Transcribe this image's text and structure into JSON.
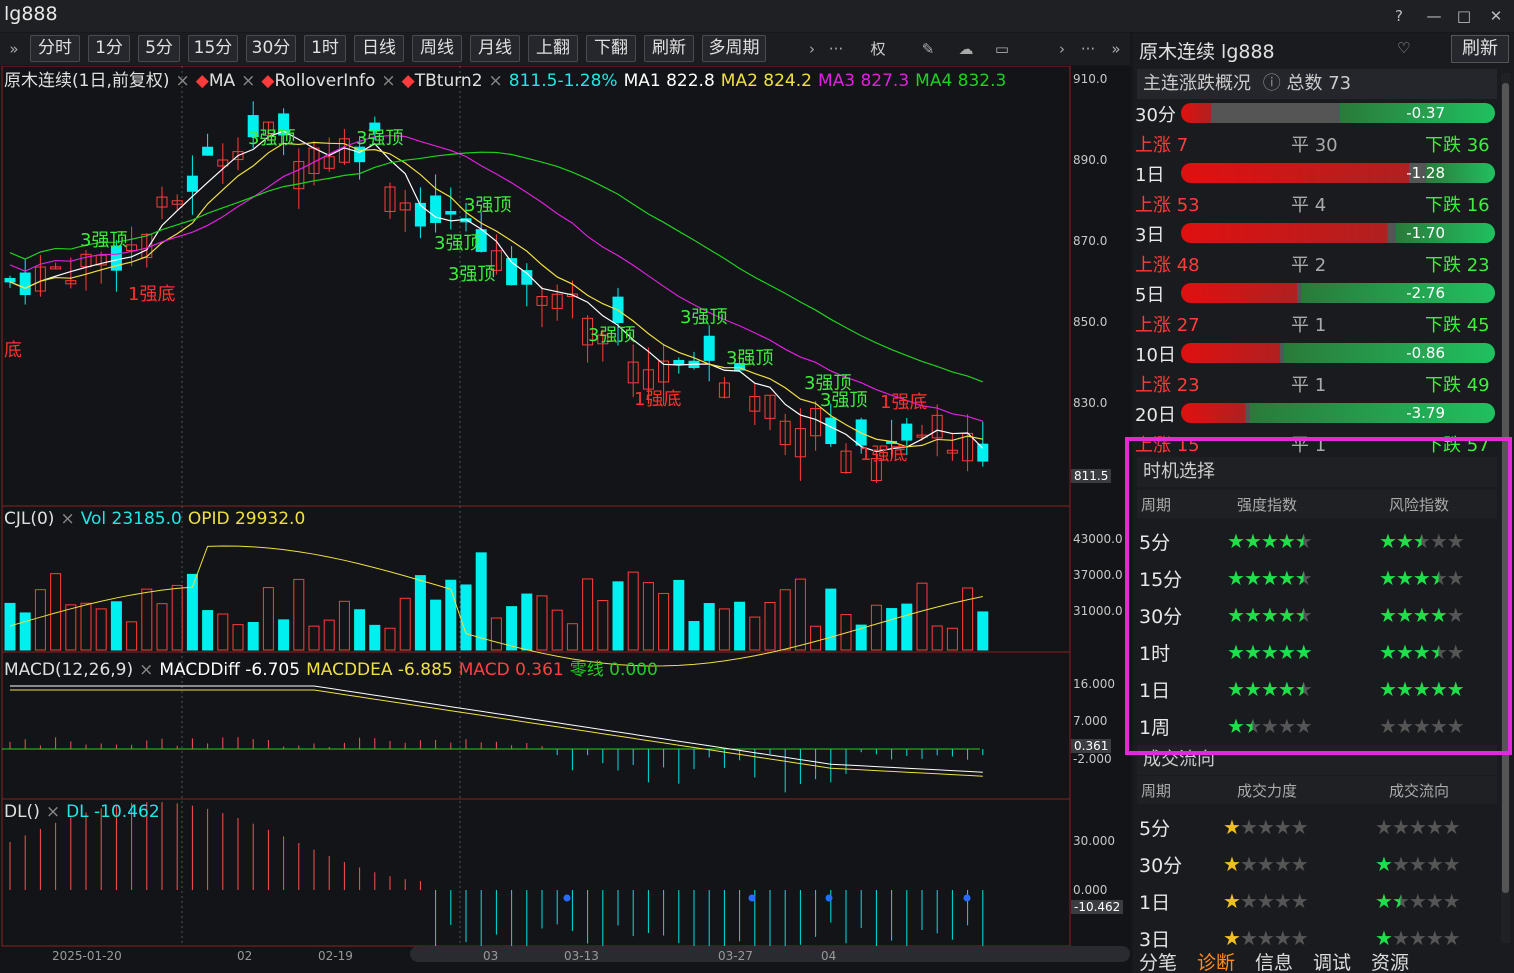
{
  "app": {
    "title": "lg888"
  },
  "toolbar": {
    "buttons": [
      "分时",
      "1分",
      "5分",
      "15分",
      "30分",
      "1时",
      "日线",
      "周线",
      "月线",
      "上翻",
      "下翻",
      "刷新",
      "多周期"
    ],
    "extra": [
      "权"
    ]
  },
  "main_overlay": {
    "name": "原木连续(1日,前复权)",
    "indicators": [
      "MA",
      "RolloverInfo",
      "TBturn2"
    ],
    "price": "811.5-1.28%",
    "ma1": "MA1 822.8",
    "ma2": "MA2 824.2",
    "ma3": "MA3 827.3",
    "ma4": "MA4 832.3"
  },
  "price_axis": [
    "910.0",
    "890.0",
    "870.0",
    "850.0",
    "830.0"
  ],
  "price_last": "811.5",
  "vol_overlay": {
    "name": "CJL(0)",
    "vol": "Vol 23185.0",
    "opid": "OPID 29932.0"
  },
  "vol_axis": [
    "43000.0",
    "37000.0",
    "31000.0"
  ],
  "macd_overlay": {
    "name": "MACD(12,26,9)",
    "diff": "MACDDiff -6.705",
    "dea": "MACDDEA -6.885",
    "macd": "MACD 0.361",
    "zero": "零线 0.000"
  },
  "macd_axis": [
    "16.000",
    "7.000",
    "-2.000"
  ],
  "macd_last": "0.361",
  "dl_overlay": {
    "name": "DL()",
    "dl": "DL -10.462"
  },
  "dl_axis": [
    "30.000",
    "0.000"
  ],
  "dl_last": "-10.462",
  "date_axis": [
    "2025-01-20",
    "02",
    "02-19",
    "03",
    "03-13",
    "03-27",
    "04"
  ],
  "annotations": {
    "top": "3强顶",
    "bottom": "1强底",
    "partial_bottom": "底"
  },
  "right_panel": {
    "title": "原木连续 lg888",
    "refresh": "刷新",
    "overview_title": "主连涨跌概况",
    "total": "总数 73",
    "periods": [
      {
        "label": "30分",
        "value": "-0.37",
        "up": "上涨 7",
        "flat": "平 30",
        "down": "下跌 36"
      },
      {
        "label": "1日",
        "value": "-1.28",
        "up": "上涨 53",
        "flat": "平 4",
        "down": "下跌 16"
      },
      {
        "label": "3日",
        "value": "-1.70",
        "up": "上涨 48",
        "flat": "平 2",
        "down": "下跌 23"
      },
      {
        "label": "5日",
        "value": "-2.76",
        "up": "上涨 27",
        "flat": "平 1",
        "down": "下跌 45"
      },
      {
        "label": "10日",
        "value": "-0.86",
        "up": "上涨 23",
        "flat": "平 1",
        "down": "下跌 49"
      },
      {
        "label": "20日",
        "value": "-3.79",
        "up": "上涨 15",
        "flat": "平 1",
        "down": "下跌 57"
      }
    ],
    "timing_title": "时机选择",
    "timing_headers": [
      "周期",
      "强度指数",
      "风险指数"
    ],
    "timing_rows": [
      {
        "p": "5分",
        "s": 4.5,
        "r": 2.5
      },
      {
        "p": "15分",
        "s": 4.5,
        "r": 3.5
      },
      {
        "p": "30分",
        "s": 4.5,
        "r": 4
      },
      {
        "p": "1时",
        "s": 5,
        "r": 3.5
      },
      {
        "p": "1日",
        "s": 4.5,
        "r": 5
      },
      {
        "p": "1周",
        "s": 1.5,
        "r": 0
      }
    ],
    "flow_title": "成交流向",
    "flow_headers": [
      "周期",
      "成交力度",
      "成交流向"
    ],
    "flow_rows": [
      {
        "p": "5分",
        "s": 1,
        "r": 0
      },
      {
        "p": "30分",
        "s": 1,
        "r": 1
      },
      {
        "p": "1日",
        "s": 1,
        "r": 1.5
      },
      {
        "p": "3日",
        "s": 1,
        "r": 1
      }
    ],
    "tabs": [
      "分笔",
      "诊断",
      "信息",
      "调试",
      "资源"
    ],
    "active_tab": "诊断"
  },
  "colors": {
    "up": "#ff3b3b",
    "down": "#00f0f0",
    "ma1": "#ffffff",
    "ma2": "#f0e040",
    "ma3": "#e020e0",
    "ma4": "#20d020",
    "green_text": "#3cf03c",
    "highlight": "#e22ad8"
  }
}
